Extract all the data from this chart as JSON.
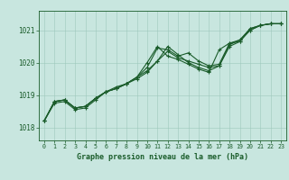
{
  "background_color": "#c8e6df",
  "plot_bg_color": "#c8e6df",
  "grid_color": "#9dc8bc",
  "line_color": "#1a5c2a",
  "title": "Graphe pression niveau de la mer (hPa)",
  "xlim": [
    -0.5,
    23.5
  ],
  "ylim": [
    1017.6,
    1021.6
  ],
  "yticks": [
    1018,
    1019,
    1020,
    1021
  ],
  "xticks": [
    0,
    1,
    2,
    3,
    4,
    5,
    6,
    7,
    8,
    9,
    10,
    11,
    12,
    13,
    14,
    15,
    16,
    17,
    18,
    19,
    20,
    21,
    22,
    23
  ],
  "series": [
    [
      1018.2,
      1018.8,
      1018.85,
      1018.6,
      1018.65,
      1018.9,
      1019.1,
      1019.2,
      1019.35,
      1019.55,
      1019.75,
      1020.05,
      1020.35,
      1020.15,
      1020.05,
      1019.95,
      1019.85,
      1019.9,
      1020.55,
      1020.7,
      1021.05,
      1021.15,
      1021.2,
      1021.2
    ],
    [
      1018.2,
      1018.8,
      1018.85,
      1018.6,
      1018.65,
      1018.9,
      1019.1,
      1019.25,
      1019.35,
      1019.55,
      1019.85,
      1020.45,
      1020.4,
      1020.2,
      1020.3,
      1020.05,
      1019.9,
      1019.95,
      1020.6,
      1020.7,
      1021.0,
      1021.15,
      1021.2,
      1021.2
    ],
    [
      1018.2,
      1018.75,
      1018.8,
      1018.55,
      1018.6,
      1018.85,
      1019.1,
      1019.2,
      1019.35,
      1019.5,
      1019.7,
      1020.05,
      1020.5,
      1020.25,
      1020.0,
      1019.85,
      1019.75,
      1019.9,
      1020.5,
      1020.65,
      1021.0,
      1021.15,
      1021.2,
      1021.2
    ],
    [
      1018.2,
      1018.8,
      1018.85,
      1018.6,
      1018.65,
      1018.9,
      1019.1,
      1019.2,
      1019.35,
      1019.55,
      1020.0,
      1020.5,
      1020.2,
      1020.1,
      1019.95,
      1019.8,
      1019.7,
      1020.4,
      1020.6,
      1020.65,
      1021.05,
      1021.15,
      1021.2,
      1021.2
    ]
  ],
  "ylabel_fontsize": 5.5,
  "xlabel_fontsize": 6.0,
  "xtick_fontsize": 4.8,
  "ytick_fontsize": 5.5,
  "linewidth": 0.8,
  "markersize": 2.5
}
